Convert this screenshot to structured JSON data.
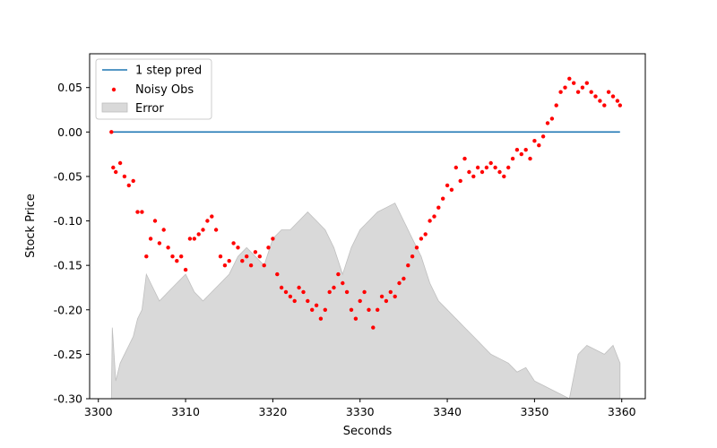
{
  "chart_data": {
    "type": "line",
    "title": "",
    "xlabel": "Seconds",
    "ylabel": "Stock Price",
    "xlim": [
      3299.0,
      3362.7
    ],
    "ylim": [
      -0.3,
      0.088
    ],
    "x_ticks": [
      3300,
      3310,
      3320,
      3330,
      3340,
      3350,
      3360
    ],
    "y_ticks": [
      0.05,
      0.0,
      -0.05,
      -0.1,
      -0.15,
      -0.2,
      -0.25,
      -0.3
    ],
    "grid": false,
    "legend_position": "upper left",
    "legend": [
      "1 step pred",
      "Noisy Obs",
      "Error"
    ],
    "colors": {
      "prediction": "#1f77b4",
      "observations": "#ff0000",
      "error_fill": "#d9d9d9",
      "error_edge": "#bfbfbf"
    },
    "series": [
      {
        "name": "1 step pred",
        "type": "line",
        "x": [
          3301.5,
          3359.8
        ],
        "y": [
          0.0,
          0.0
        ]
      },
      {
        "name": "Noisy Obs",
        "type": "scatter",
        "x": [
          3301.5,
          3301.7,
          3302.0,
          3302.5,
          3303.0,
          3303.5,
          3304.0,
          3304.5,
          3305.0,
          3305.5,
          3306.0,
          3306.5,
          3307.0,
          3307.5,
          3308.0,
          3308.5,
          3309.0,
          3309.5,
          3310.0,
          3310.5,
          3311.0,
          3311.5,
          3312.0,
          3312.5,
          3313.0,
          3313.5,
          3314.0,
          3314.5,
          3315.0,
          3315.5,
          3316.0,
          3316.5,
          3317.0,
          3317.5,
          3318.0,
          3318.5,
          3319.0,
          3319.5,
          3320.0,
          3320.5,
          3321.0,
          3321.5,
          3322.0,
          3322.5,
          3323.0,
          3323.5,
          3324.0,
          3324.5,
          3325.0,
          3325.5,
          3326.0,
          3326.5,
          3327.0,
          3327.5,
          3328.0,
          3328.5,
          3329.0,
          3329.5,
          3330.0,
          3330.5,
          3331.0,
          3331.5,
          3332.0,
          3332.5,
          3333.0,
          3333.5,
          3334.0,
          3334.5,
          3335.0,
          3335.5,
          3336.0,
          3336.5,
          3337.0,
          3337.5,
          3338.0,
          3338.5,
          3339.0,
          3339.5,
          3340.0,
          3340.5,
          3341.0,
          3341.5,
          3342.0,
          3342.5,
          3343.0,
          3343.5,
          3344.0,
          3344.5,
          3345.0,
          3345.5,
          3346.0,
          3346.5,
          3347.0,
          3347.5,
          3348.0,
          3348.5,
          3349.0,
          3349.5,
          3350.0,
          3350.5,
          3351.0,
          3351.5,
          3352.0,
          3352.5,
          3353.0,
          3353.5,
          3354.0,
          3354.5,
          3355.0,
          3355.5,
          3356.0,
          3356.5,
          3357.0,
          3357.5,
          3358.0,
          3358.5,
          3359.0,
          3359.5,
          3359.8
        ],
        "y": [
          0.0,
          -0.04,
          -0.045,
          -0.035,
          -0.05,
          -0.06,
          -0.055,
          -0.09,
          -0.09,
          -0.14,
          -0.12,
          -0.1,
          -0.125,
          -0.11,
          -0.13,
          -0.14,
          -0.145,
          -0.14,
          -0.155,
          -0.12,
          -0.12,
          -0.115,
          -0.11,
          -0.1,
          -0.095,
          -0.11,
          -0.14,
          -0.15,
          -0.145,
          -0.125,
          -0.13,
          -0.145,
          -0.14,
          -0.15,
          -0.135,
          -0.14,
          -0.15,
          -0.13,
          -0.12,
          -0.16,
          -0.175,
          -0.18,
          -0.185,
          -0.19,
          -0.175,
          -0.18,
          -0.19,
          -0.2,
          -0.195,
          -0.21,
          -0.2,
          -0.18,
          -0.175,
          -0.16,
          -0.17,
          -0.18,
          -0.2,
          -0.21,
          -0.19,
          -0.18,
          -0.2,
          -0.22,
          -0.2,
          -0.185,
          -0.19,
          -0.18,
          -0.185,
          -0.17,
          -0.165,
          -0.15,
          -0.14,
          -0.13,
          -0.12,
          -0.115,
          -0.1,
          -0.095,
          -0.085,
          -0.075,
          -0.06,
          -0.065,
          -0.04,
          -0.055,
          -0.03,
          -0.045,
          -0.05,
          -0.04,
          -0.045,
          -0.04,
          -0.035,
          -0.04,
          -0.045,
          -0.05,
          -0.04,
          -0.03,
          -0.02,
          -0.025,
          -0.02,
          -0.03,
          -0.01,
          -0.015,
          -0.005,
          0.01,
          0.015,
          0.03,
          0.045,
          0.05,
          0.06,
          0.055,
          0.045,
          0.05,
          0.055,
          0.045,
          0.04,
          0.035,
          0.03,
          0.045,
          0.04,
          0.035,
          0.03
        ]
      },
      {
        "name": "Error",
        "type": "area",
        "x": [
          3301.5,
          3301.6,
          3302.0,
          3302.5,
          3303.0,
          3303.5,
          3304.0,
          3304.5,
          3305.0,
          3305.5,
          3306.0,
          3307.0,
          3308.0,
          3309.0,
          3310.0,
          3311.0,
          3312.0,
          3313.0,
          3314.0,
          3315.0,
          3316.0,
          3317.0,
          3318.0,
          3319.0,
          3320.0,
          3321.0,
          3322.0,
          3323.0,
          3324.0,
          3325.0,
          3326.0,
          3327.0,
          3328.0,
          3329.0,
          3330.0,
          3331.0,
          3332.0,
          3333.0,
          3334.0,
          3335.0,
          3336.0,
          3337.0,
          3338.0,
          3339.0,
          3340.0,
          3341.0,
          3342.0,
          3343.0,
          3344.0,
          3345.0,
          3346.0,
          3347.0,
          3348.0,
          3349.0,
          3350.0,
          3351.0,
          3352.0,
          3353.0,
          3354.0,
          3355.0,
          3356.0,
          3357.0,
          3358.0,
          3359.0,
          3359.8
        ],
        "y": [
          -0.3,
          -0.22,
          -0.28,
          -0.26,
          -0.25,
          -0.24,
          -0.23,
          -0.21,
          -0.2,
          -0.16,
          -0.17,
          -0.19,
          -0.18,
          -0.17,
          -0.16,
          -0.18,
          -0.19,
          -0.18,
          -0.17,
          -0.16,
          -0.14,
          -0.13,
          -0.14,
          -0.15,
          -0.12,
          -0.11,
          -0.11,
          -0.1,
          -0.09,
          -0.1,
          -0.11,
          -0.13,
          -0.16,
          -0.13,
          -0.11,
          -0.1,
          -0.09,
          -0.085,
          -0.08,
          -0.1,
          -0.12,
          -0.14,
          -0.17,
          -0.19,
          -0.2,
          -0.21,
          -0.22,
          -0.23,
          -0.24,
          -0.25,
          -0.255,
          -0.26,
          -0.27,
          -0.265,
          -0.28,
          -0.285,
          -0.29,
          -0.295,
          -0.3,
          -0.25,
          -0.24,
          -0.245,
          -0.25,
          -0.24,
          -0.26
        ]
      }
    ]
  }
}
